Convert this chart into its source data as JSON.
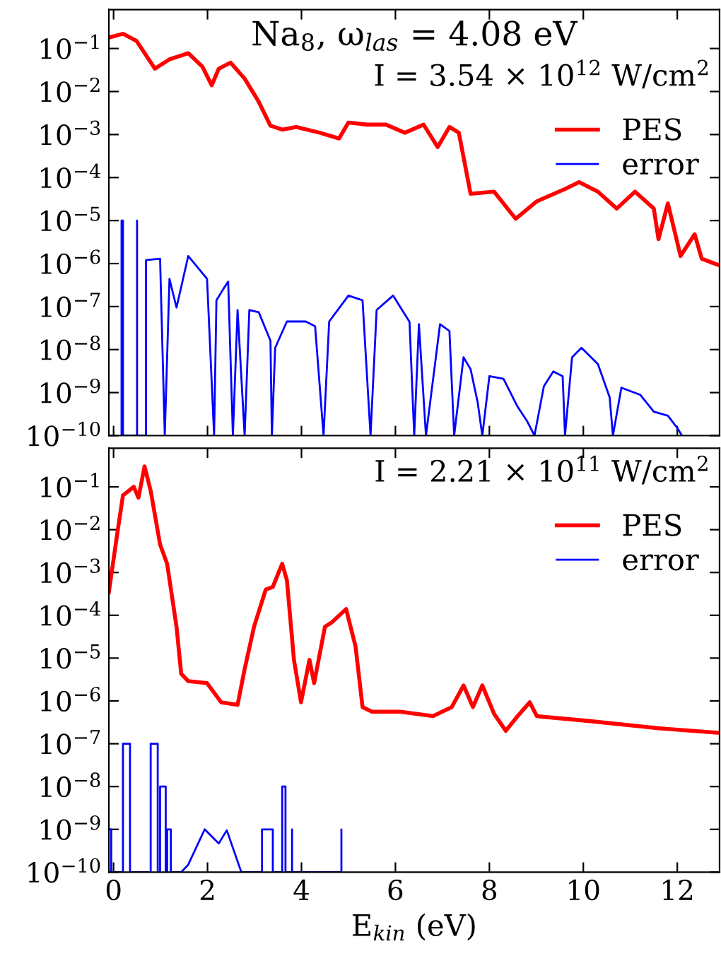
{
  "chart_data": [
    {
      "type": "line",
      "annotations": [
        "Na$_{8}$, ω$_{las}$ = 4.08 eV",
        "I = 3.54 × 10$^{12}$ W/cm$^{2}$"
      ],
      "log": "y",
      "xlim": [
        -0.1,
        12.9
      ],
      "xticks": [
        0,
        2,
        4,
        6,
        8,
        10,
        12
      ],
      "ylim": [
        1e-10,
        0.8
      ],
      "yticks": [
        {
          "value": 1e-10,
          "label": "10$^{−10}$"
        },
        {
          "value": 1e-09,
          "label": "10$^{−9}$"
        },
        {
          "value": 1e-08,
          "label": "10$^{−8}$"
        },
        {
          "value": 1e-07,
          "label": "10$^{−7}$"
        },
        {
          "value": 1e-06,
          "label": "10$^{−6}$"
        },
        {
          "value": 1e-05,
          "label": "10$^{−5}$"
        },
        {
          "value": 0.0001,
          "label": "10$^{−4}$"
        },
        {
          "value": 0.001,
          "label": "10$^{−3}$"
        },
        {
          "value": 0.01,
          "label": "10$^{−2}$"
        },
        {
          "value": 0.1,
          "label": "10$^{−1}$"
        }
      ],
      "tick_labels": "y",
      "legend": "top right",
      "grid": false,
      "series": [
        {
          "name": "PES",
          "color": "#ff0000",
          "x": [
            -0.1,
            0.2,
            0.49,
            0.88,
            1.19,
            1.59,
            1.89,
            2.09,
            2.24,
            2.49,
            2.79,
            3.09,
            3.34,
            3.59,
            3.89,
            4.39,
            4.8,
            5.0,
            5.4,
            5.8,
            6.2,
            6.6,
            6.9,
            7.15,
            7.35,
            7.6,
            8.1,
            8.56,
            9.01,
            9.61,
            9.91,
            10.31,
            10.71,
            11.1,
            11.5,
            11.6,
            11.8,
            12.07,
            12.37,
            12.52,
            12.87
          ],
          "values": [
            0.18,
            0.22,
            0.15,
            0.034,
            0.056,
            0.078,
            0.038,
            0.014,
            0.034,
            0.047,
            0.02,
            0.0058,
            0.0016,
            0.0013,
            0.0015,
            0.0011,
            0.00081,
            0.0019,
            0.0017,
            0.0017,
            0.0011,
            0.0017,
            0.00051,
            0.0015,
            0.0011,
            4.2e-05,
            4.7e-05,
            1.1e-05,
            2.8e-05,
            5.4e-05,
            7.8e-05,
            4.7e-05,
            1.9e-05,
            4.7e-05,
            1.9e-05,
            3.7e-06,
            2.5e-05,
            1.5e-06,
            4.8e-06,
            1.3e-06,
            9.3e-07
          ]
        },
        {
          "name": "error",
          "color": "#0000ff",
          "x": [
            0.17,
            0.17,
            0.2,
            0.2,
            0.5,
            0.5,
            0.5,
            0.69,
            0.69,
            0.99,
            1.09,
            1.19,
            1.34,
            1.59,
            1.99,
            2.14,
            2.19,
            2.34,
            2.44,
            2.54,
            2.64,
            2.79,
            2.89,
            3.09,
            3.34,
            3.37,
            3.44,
            3.69,
            4.09,
            4.29,
            4.47,
            4.59,
            5.0,
            5.3,
            5.47,
            5.6,
            5.95,
            6.3,
            6.4,
            6.5,
            6.65,
            6.95,
            7.15,
            7.25,
            7.45,
            7.6,
            7.75,
            7.85,
            8.0,
            8.3,
            8.6,
            8.8,
            8.96,
            9.16,
            9.36,
            9.56,
            9.61,
            9.76,
            9.96,
            10.31,
            10.56,
            10.63,
            10.81,
            11.21,
            11.5,
            11.8,
            12.0,
            12.1
          ],
          "values": [
            1e-10,
            1e-05,
            1e-05,
            1e-10,
            1e-10,
            1e-05,
            1e-10,
            1e-10,
            1.2e-06,
            1.3e-06,
            1e-10,
            4.4e-07,
            9.5e-08,
            1.5e-06,
            4.4e-07,
            1e-10,
            1.4e-07,
            2.6e-07,
            3.8e-07,
            1e-10,
            8.3e-08,
            1e-10,
            8.3e-08,
            7.4e-08,
            1.6e-08,
            1e-10,
            1.1e-08,
            4.5e-08,
            4.5e-08,
            3.5e-08,
            1e-10,
            4.5e-08,
            1.8e-07,
            1.4e-07,
            1e-10,
            8.3e-08,
            1.8e-07,
            4.4e-08,
            1e-10,
            3.9e-08,
            1e-10,
            3.9e-08,
            2.7e-08,
            1e-10,
            6.6e-09,
            3.5e-09,
            6e-10,
            1e-10,
            2.4e-09,
            2.1e-09,
            4.7e-10,
            2.2e-10,
            1e-10,
            1.4e-09,
            3.1e-09,
            2.4e-09,
            1e-10,
            6.6e-09,
            1.1e-08,
            4.6e-09,
            7.8e-10,
            1e-10,
            1.3e-09,
            8.9e-10,
            3.6e-10,
            2.9e-10,
            1.5e-10,
            1e-10
          ]
        }
      ]
    },
    {
      "type": "line",
      "annotations": [
        "I = 2.21 × 10$^{11}$ W/cm$^{2}$"
      ],
      "xlabel": "E$_{kin}$ (eV)",
      "log": "y",
      "xlim": [
        -0.1,
        12.9
      ],
      "xticks": [
        0,
        2,
        4,
        6,
        8,
        10,
        12
      ],
      "ylim": [
        1e-10,
        0.8
      ],
      "yticks": [
        {
          "value": 1e-10,
          "label": "10$^{−10}$"
        },
        {
          "value": 1e-09,
          "label": "10$^{−9}$"
        },
        {
          "value": 1e-08,
          "label": "10$^{−8}$"
        },
        {
          "value": 1e-07,
          "label": "10$^{−7}$"
        },
        {
          "value": 1e-06,
          "label": "10$^{−6}$"
        },
        {
          "value": 1e-05,
          "label": "10$^{−5}$"
        },
        {
          "value": 0.0001,
          "label": "10$^{−4}$"
        },
        {
          "value": 0.001,
          "label": "10$^{−3}$"
        },
        {
          "value": 0.01,
          "label": "10$^{−2}$"
        },
        {
          "value": 0.1,
          "label": "10$^{−1}$"
        }
      ],
      "legend": "top right",
      "grid": false,
      "series": [
        {
          "name": "PES",
          "color": "#ff0000",
          "x": [
            -0.1,
            0.08,
            0.2,
            0.43,
            0.53,
            0.66,
            0.79,
            0.99,
            1.14,
            1.34,
            1.44,
            1.59,
            1.99,
            2.29,
            2.64,
            2.79,
            2.99,
            3.24,
            3.39,
            3.59,
            3.69,
            3.84,
            3.99,
            4.17,
            4.27,
            4.5,
            4.65,
            4.95,
            5.15,
            5.3,
            5.5,
            6.1,
            6.8,
            7.2,
            7.45,
            7.65,
            7.85,
            8.1,
            8.35,
            8.6,
            8.86,
            9.01,
            10.11,
            11.61,
            12.87
          ],
          "values": [
            0.00035,
            0.0083,
            0.063,
            0.1,
            0.056,
            0.3,
            0.081,
            0.0045,
            0.0016,
            5.4e-05,
            4.3e-06,
            2.9e-06,
            2.6e-06,
            9.3e-07,
            8.1e-07,
            5.5e-06,
            5.4e-05,
            0.0004,
            0.00046,
            0.0016,
            0.00066,
            9.1e-06,
            9.3e-07,
            9.1e-06,
            2.6e-06,
            5.4e-05,
            6.9e-05,
            0.00014,
            1.9e-05,
            7.2e-07,
            5.6e-07,
            5.6e-07,
            4.4e-07,
            7.2e-07,
            2.3e-06,
            7.2e-07,
            2.3e-06,
            5e-07,
            2e-07,
            4.4e-07,
            9.3e-07,
            4.4e-07,
            3.4e-07,
            2.3e-07,
            1.8e-07
          ]
        },
        {
          "name": "error",
          "color": "#0000ff",
          "x": [
            -0.1,
            -0.05,
            -0.05,
            0.2,
            0.2,
            0.35,
            0.35,
            0.79,
            0.79,
            0.94,
            0.94,
            0.99,
            0.99,
            1.11,
            1.11,
            1.14,
            1.14,
            1.22,
            1.22,
            1.44,
            1.59,
            1.94,
            2.24,
            2.41,
            2.72,
            3.16,
            3.16,
            3.39,
            3.39,
            3.59,
            3.59,
            3.66,
            3.66,
            3.8,
            3.8,
            3.8,
            4.85,
            4.85,
            4.85
          ],
          "values": [
            1e-09,
            1e-09,
            1e-10,
            1e-10,
            1e-07,
            1e-07,
            1e-10,
            1e-10,
            1e-07,
            1e-07,
            1e-10,
            1e-10,
            1e-08,
            1e-08,
            1e-10,
            1e-10,
            1e-09,
            1e-09,
            1e-10,
            1e-10,
            1.5e-10,
            1e-09,
            4.7e-10,
            9.5e-10,
            1e-10,
            1e-10,
            1e-09,
            1e-09,
            1e-10,
            1e-10,
            1e-08,
            1e-08,
            1e-10,
            1e-10,
            1e-09,
            1e-10,
            1e-10,
            1e-09,
            1e-10
          ]
        }
      ]
    }
  ]
}
